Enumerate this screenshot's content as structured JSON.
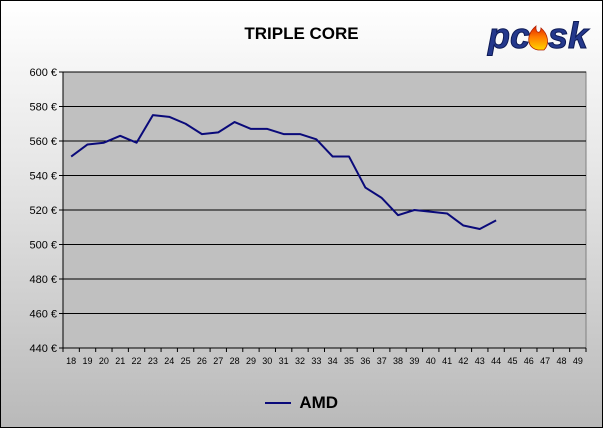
{
  "chart_data": {
    "type": "line",
    "title": "TRIPLE CORE",
    "xlabel": "",
    "ylabel": "",
    "categories": [
      "18",
      "19",
      "20",
      "21",
      "22",
      "23",
      "24",
      "25",
      "26",
      "27",
      "28",
      "29",
      "30",
      "31",
      "32",
      "33",
      "34",
      "35",
      "36",
      "37",
      "38",
      "39",
      "40",
      "41",
      "42",
      "43",
      "44",
      "45",
      "46",
      "47",
      "48",
      "49"
    ],
    "series": [
      {
        "name": "AMD",
        "color": "#0a0a7a",
        "values": [
          551,
          558,
          559,
          563,
          559,
          575,
          574,
          570,
          564,
          565,
          571,
          567,
          567,
          564,
          564,
          561,
          551,
          551,
          533,
          527,
          517,
          520,
          519,
          518,
          511,
          509,
          514,
          null,
          null,
          null,
          null,
          null
        ]
      }
    ],
    "ylim": [
      440,
      600
    ],
    "yticks": [
      440,
      460,
      480,
      500,
      520,
      540,
      560,
      580,
      600
    ],
    "ytick_labels": [
      "440 €",
      "460 €",
      "480 €",
      "500 €",
      "520 €",
      "540 €",
      "560 €",
      "580 €",
      "600 €"
    ],
    "grid": "horizontal",
    "plot_background": "#c0c0c0",
    "legend_position": "bottom"
  },
  "logo": {
    "text": "pcsk",
    "icon": "flame-icon"
  }
}
